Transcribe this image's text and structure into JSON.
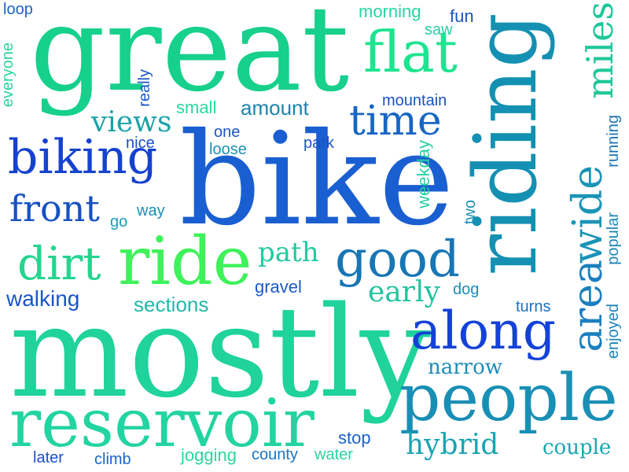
{
  "words": [
    {
      "key": "bike",
      "text": "bike",
      "color": "#1a5fd1"
    },
    {
      "key": "mostly",
      "text": "mostly",
      "color": "#1fd39a"
    },
    {
      "key": "great",
      "text": "great",
      "color": "#16d08c"
    },
    {
      "key": "riding",
      "text": "riding",
      "color": "#1490b2"
    },
    {
      "key": "people",
      "text": "people",
      "color": "#1a8fb5"
    },
    {
      "key": "reservoir",
      "text": "reservoir",
      "color": "#22d4a0"
    },
    {
      "key": "ride",
      "text": "ride",
      "color": "#3ef25a"
    },
    {
      "key": "flat",
      "text": "flat",
      "color": "#1de48f"
    },
    {
      "key": "along",
      "text": "along",
      "color": "#1442d8"
    },
    {
      "key": "biking",
      "text": "biking",
      "color": "#1542cf"
    },
    {
      "key": "good",
      "text": "good",
      "color": "#1776b5"
    },
    {
      "key": "time",
      "text": "time",
      "color": "#1766c4"
    },
    {
      "key": "front",
      "text": "front",
      "color": "#1551c2"
    },
    {
      "key": "dirt",
      "text": "dirt",
      "color": "#25d58f"
    },
    {
      "key": "area",
      "text": "area",
      "color": "#1a7fc0"
    },
    {
      "key": "wide",
      "text": "wide",
      "color": "#1b94b7"
    },
    {
      "key": "miles",
      "text": "miles",
      "color": "#20c79a"
    },
    {
      "key": "views",
      "text": "views",
      "color": "#1ba3a8"
    },
    {
      "key": "path",
      "text": "path",
      "color": "#23c9a0"
    },
    {
      "key": "amount",
      "text": "amount",
      "color": "#1d83b0"
    },
    {
      "key": "walking",
      "text": "walking",
      "color": "#1b53c9"
    },
    {
      "key": "sections",
      "text": "sections",
      "color": "#20b9aa"
    },
    {
      "key": "early",
      "text": "early",
      "color": "#23c3a0"
    },
    {
      "key": "hybrid",
      "text": "hybrid",
      "color": "#1aa3b2"
    },
    {
      "key": "narrow",
      "text": "narrow",
      "color": "#1a8db8"
    },
    {
      "key": "couple",
      "text": "couple",
      "color": "#1aa6b0"
    },
    {
      "key": "morning",
      "text": "morning",
      "color": "#27d5a3"
    },
    {
      "key": "saw",
      "text": "saw",
      "color": "#26d0a6"
    },
    {
      "key": "fun",
      "text": "fun",
      "color": "#1b54c2"
    },
    {
      "key": "mountain",
      "text": "mountain",
      "color": "#1a52c4"
    },
    {
      "key": "small",
      "text": "small",
      "color": "#27d89a"
    },
    {
      "key": "really",
      "text": "really",
      "color": "#1a56c6"
    },
    {
      "key": "loop",
      "text": "loop",
      "color": "#1c62c4"
    },
    {
      "key": "everyone",
      "text": "everyone",
      "color": "#27d3a0"
    },
    {
      "key": "one",
      "text": "one",
      "color": "#1c57c4"
    },
    {
      "key": "nice",
      "text": "nice",
      "color": "#1c4fc4"
    },
    {
      "key": "loose",
      "text": "loose",
      "color": "#1a90b6"
    },
    {
      "key": "park",
      "text": "park",
      "color": "#1c53c4"
    },
    {
      "key": "way",
      "text": "way",
      "color": "#1a8fb5"
    },
    {
      "key": "go",
      "text": "go",
      "color": "#1b9bb3"
    },
    {
      "key": "weekday",
      "text": "weekday",
      "color": "#27d1a0"
    },
    {
      "key": "two",
      "text": "two",
      "color": "#1b8fb5"
    },
    {
      "key": "running",
      "text": "running",
      "color": "#1b75b8"
    },
    {
      "key": "popular",
      "text": "popular",
      "color": "#1b86b7"
    },
    {
      "key": "enjoyed",
      "text": "enjoyed",
      "color": "#1b83b7"
    },
    {
      "key": "gravel",
      "text": "gravel",
      "color": "#1a5cc4"
    },
    {
      "key": "dog",
      "text": "dog",
      "color": "#1b8fb5"
    },
    {
      "key": "turns",
      "text": "turns",
      "color": "#1b6ec0"
    },
    {
      "key": "stop",
      "text": "stop",
      "color": "#1b62c4"
    },
    {
      "key": "later",
      "text": "later",
      "color": "#1b50c4"
    },
    {
      "key": "climb",
      "text": "climb",
      "color": "#1b65c4"
    },
    {
      "key": "jogging",
      "text": "jogging",
      "color": "#27d89a"
    },
    {
      "key": "county",
      "text": "county",
      "color": "#1a74bf"
    },
    {
      "key": "water",
      "text": "water",
      "color": "#27d5a0"
    }
  ]
}
